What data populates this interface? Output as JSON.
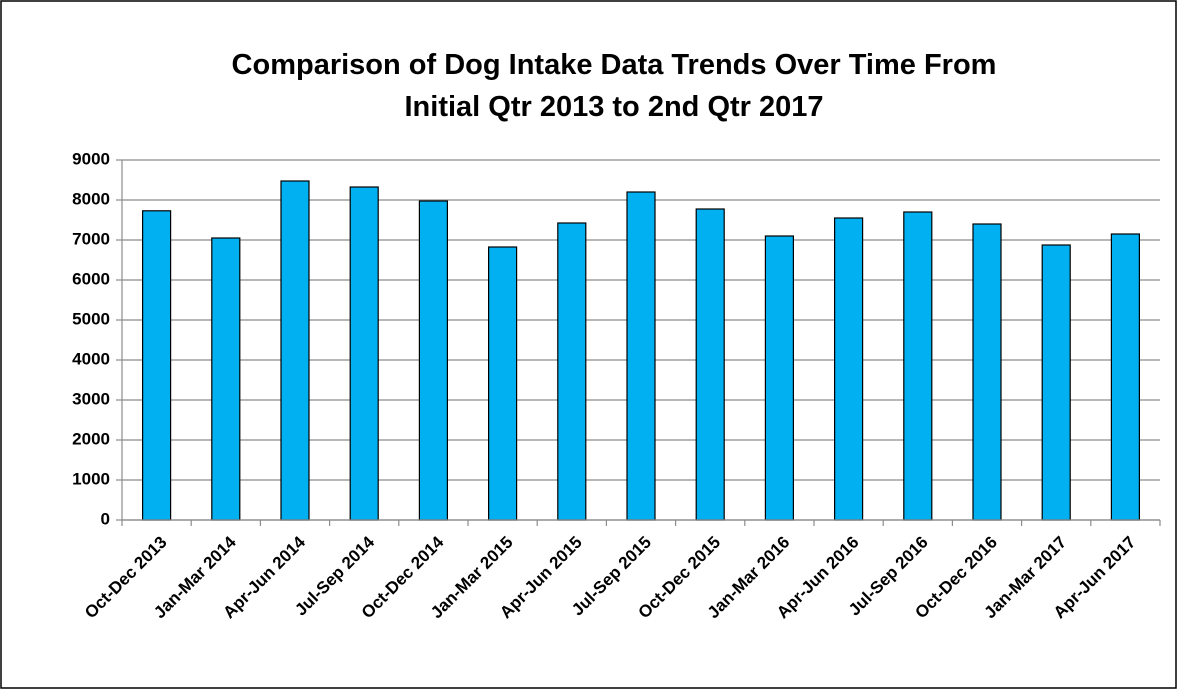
{
  "chart_data": {
    "type": "bar",
    "title": [
      "Comparison of Dog Intake Data Trends Over Time From",
      "Initial Qtr 2013 to  2nd Qtr 2017"
    ],
    "categories": [
      "Oct-Dec 2013",
      "Jan-Mar 2014",
      "Apr-Jun 2014",
      "Jul-Sep 2014",
      "Oct-Dec 2014",
      "Jan-Mar 2015",
      "Apr-Jun 2015",
      "Jul-Sep 2015",
      "Oct-Dec 2015",
      "Jan-Mar 2016",
      "Apr-Jun 2016",
      "Jul-Sep 2016",
      "Oct-Dec 2016",
      "Jan-Mar 2017",
      "Apr-Jun 2017"
    ],
    "values": [
      7730,
      7050,
      8475,
      8325,
      7975,
      6825,
      7425,
      8200,
      7775,
      7100,
      7550,
      7700,
      7400,
      6875,
      7150
    ],
    "color": "#00b0f0",
    "ylim": [
      0,
      9000
    ],
    "yticks": [
      0,
      1000,
      2000,
      3000,
      4000,
      5000,
      6000,
      7000,
      8000,
      9000
    ],
    "grid": true
  }
}
